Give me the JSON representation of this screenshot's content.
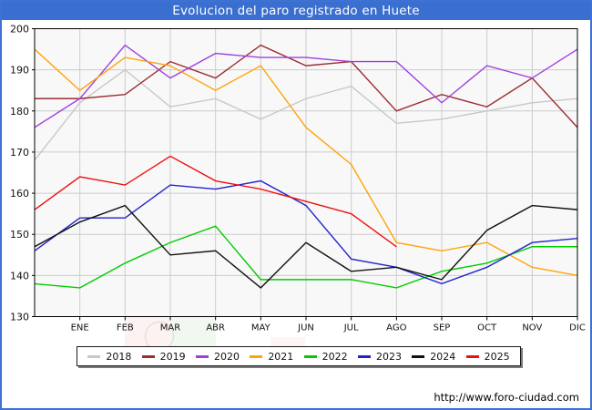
{
  "window": {
    "title": "Evolucion del paro registrado en Huete",
    "footer_url": "http://www.foro-ciudad.com"
  },
  "theme": {
    "titlebar_bg": "#3a6fd0",
    "frame_border": "#3d71d3",
    "plot_bg": "#f8f8f8",
    "grid_color": "#cccccc",
    "axis_border_color": "#000000",
    "label_color": "#111111"
  },
  "chart_data": {
    "type": "line",
    "title": "Evolucion del paro registrado en Huete",
    "x_tick_labels": [
      "ENE",
      "FEB",
      "MAR",
      "ABR",
      "MAY",
      "JUN",
      "JUL",
      "AGO",
      "SEP",
      "OCT",
      "NOV",
      "DIC"
    ],
    "x_note": "Each series has 13 points: the first value sits on the left plot edge (previous December carry-over) followed by the 12 monthly values ENE-DIC. The 2025 series ends at AGO.",
    "ylim": [
      130,
      200
    ],
    "y_ticks": [
      130,
      140,
      150,
      160,
      170,
      180,
      190,
      200
    ],
    "grid": true,
    "legend_position": "bottom",
    "series": [
      {
        "name": "2018",
        "color": "#c8c8c8",
        "values": [
          168,
          182,
          190,
          181,
          183,
          178,
          183,
          186,
          177,
          178,
          180,
          182,
          183
        ]
      },
      {
        "name": "2019",
        "color": "#9b2d30",
        "values": [
          183,
          183,
          184,
          192,
          188,
          196,
          191,
          192,
          180,
          184,
          181,
          188,
          176
        ]
      },
      {
        "name": "2020",
        "color": "#a03fe0",
        "values": [
          176,
          183,
          196,
          188,
          194,
          193,
          193,
          192,
          192,
          182,
          191,
          188,
          195
        ]
      },
      {
        "name": "2021",
        "color": "#ffa408",
        "values": [
          195,
          185,
          193,
          191,
          185,
          191,
          176,
          167,
          148,
          146,
          148,
          142,
          140
        ]
      },
      {
        "name": "2022",
        "color": "#00cc00",
        "values": [
          138,
          137,
          143,
          148,
          152,
          139,
          139,
          139,
          137,
          141,
          143,
          147,
          147
        ]
      },
      {
        "name": "2023",
        "color": "#2222cc",
        "values": [
          146,
          154,
          154,
          162,
          161,
          163,
          157,
          144,
          142,
          138,
          142,
          148,
          149
        ]
      },
      {
        "name": "2024",
        "color": "#111111",
        "values": [
          147,
          153,
          157,
          145,
          146,
          137,
          148,
          141,
          142,
          139,
          151,
          157,
          156
        ]
      },
      {
        "name": "2025",
        "color": "#ee1111",
        "values": [
          156,
          164,
          162,
          169,
          163,
          161,
          158,
          155,
          147
        ]
      }
    ]
  }
}
